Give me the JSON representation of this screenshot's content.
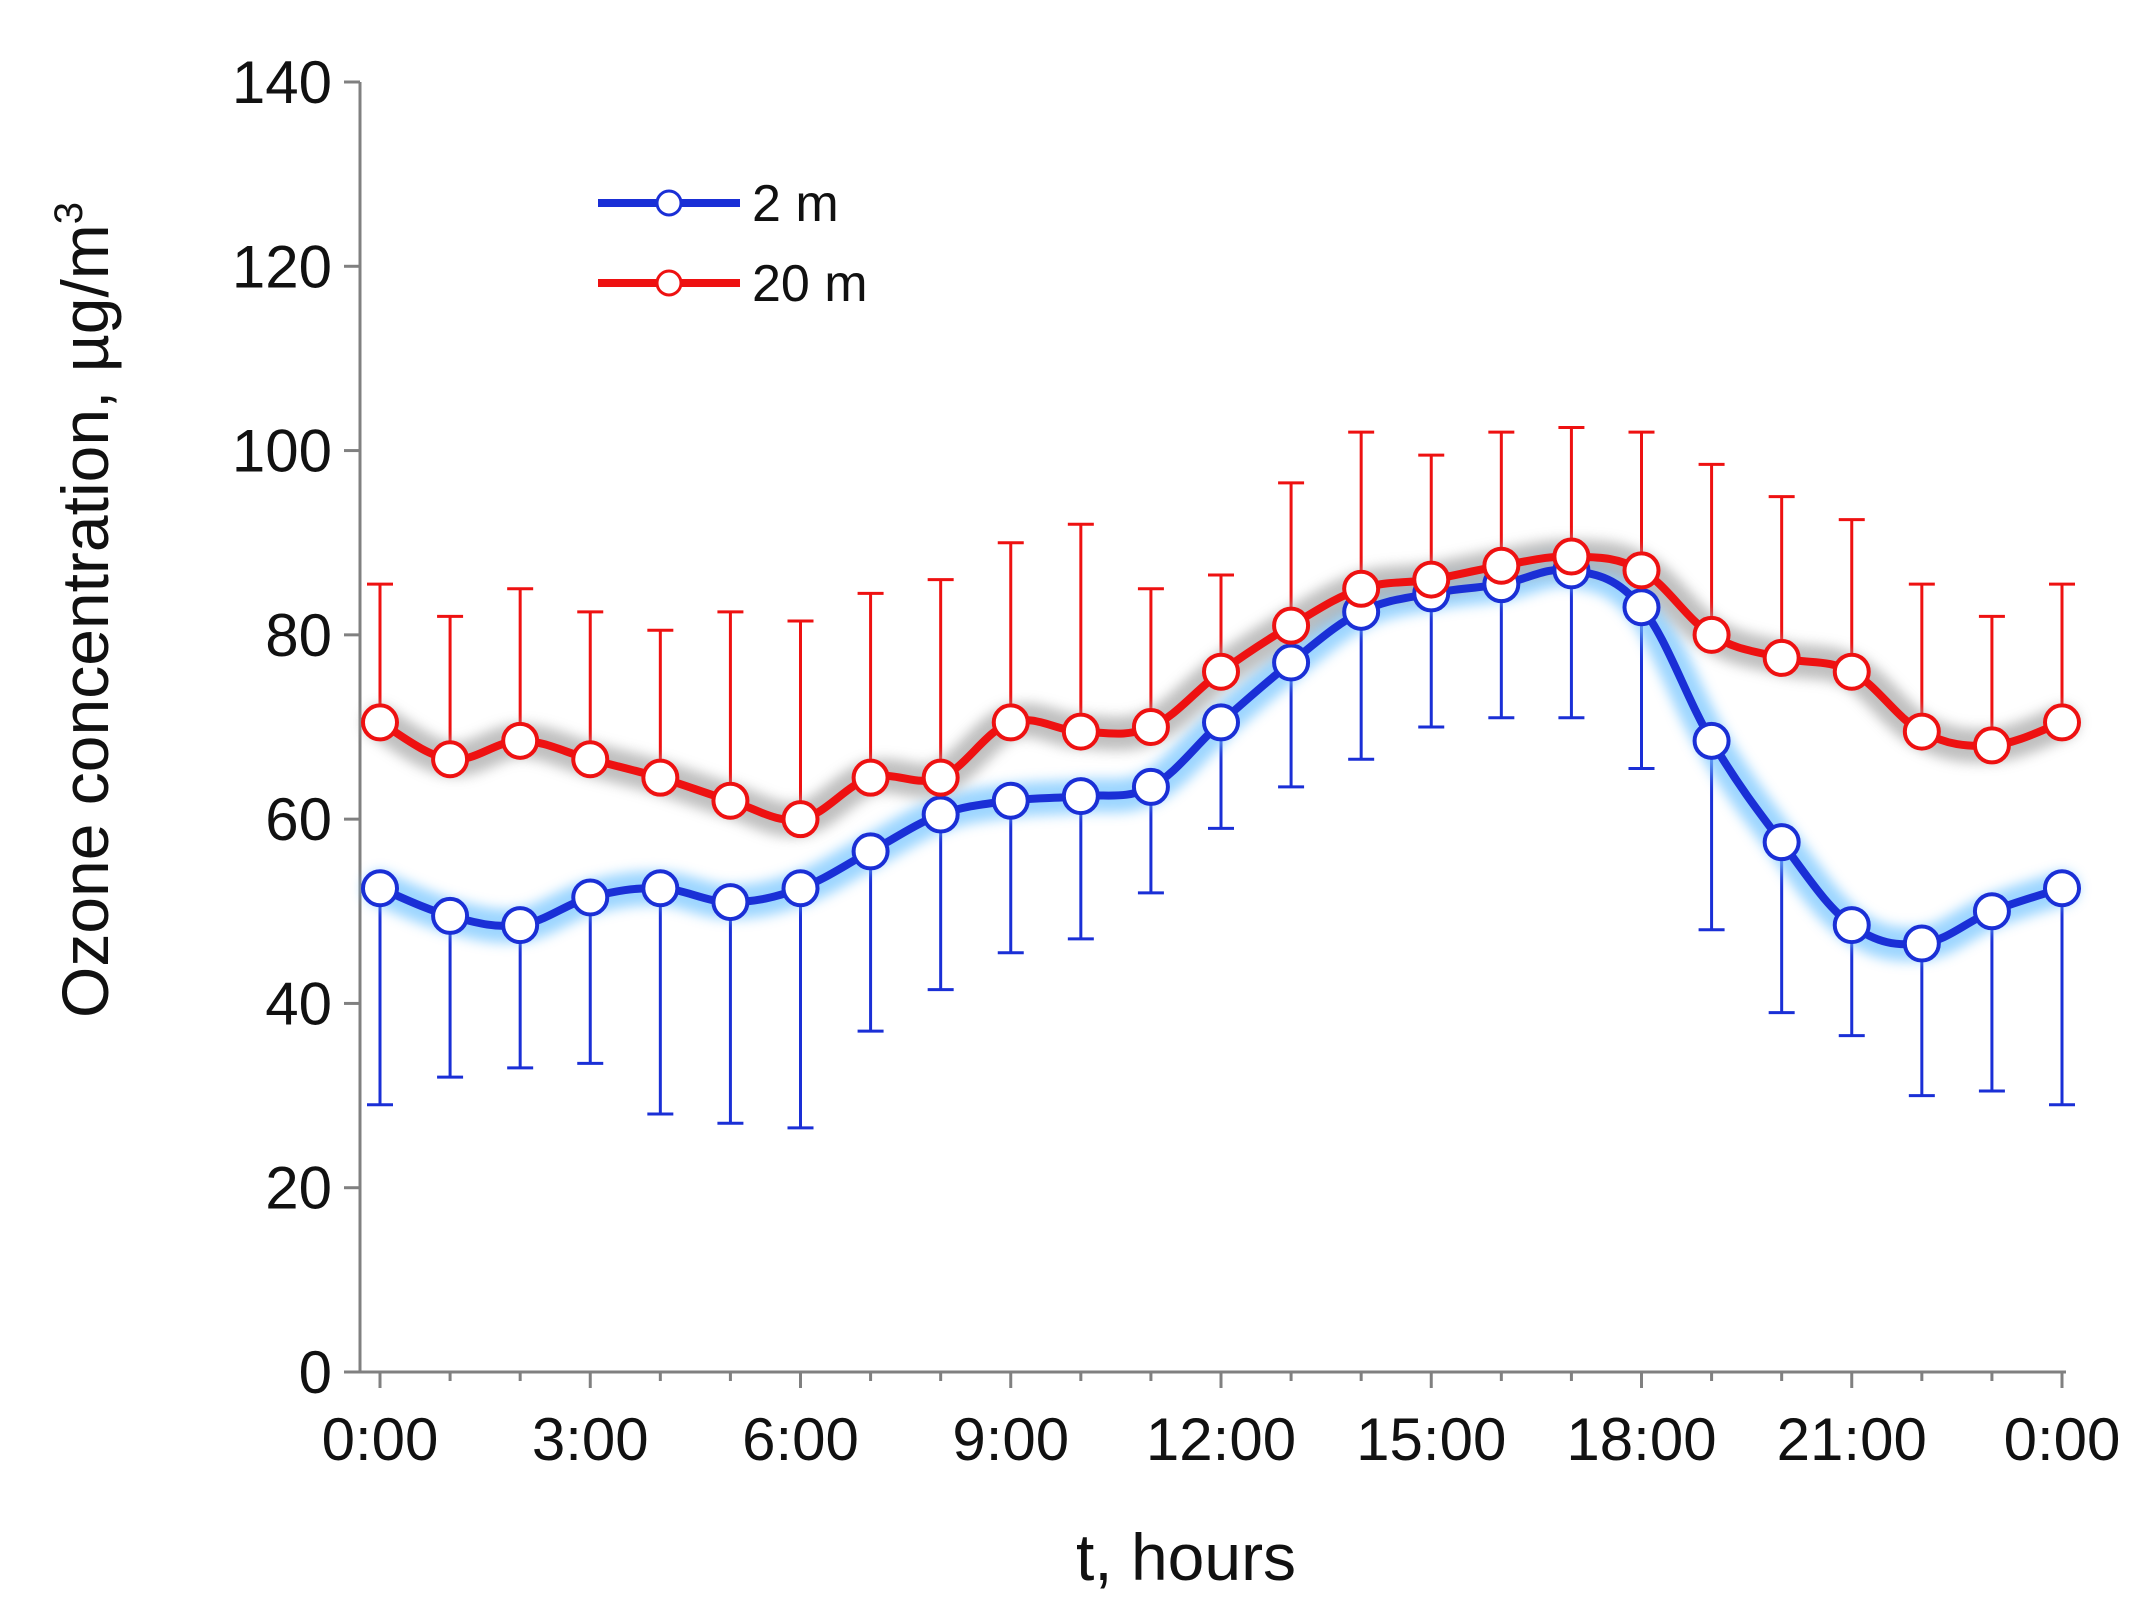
{
  "chart_data": {
    "type": "line",
    "title": "",
    "xlabel": "t, hours",
    "ylabel_main": "Ozone concentration, µg/m",
    "ylabel_sup": "3",
    "ylim": [
      0,
      140
    ],
    "yticks": [
      "0",
      "20",
      "40",
      "60",
      "80",
      "100",
      "120",
      "140"
    ],
    "xlim": [
      0,
      24
    ],
    "xtick_labels": [
      "0:00",
      "3:00",
      "6:00",
      "9:00",
      "12:00",
      "15:00",
      "18:00",
      "21:00",
      "0:00"
    ],
    "legend_position": "top-left",
    "grid": false,
    "x": [
      0,
      1,
      2,
      3,
      4,
      5,
      6,
      7,
      8,
      9,
      10,
      11,
      12,
      13,
      14,
      15,
      16,
      17,
      18,
      19,
      20,
      21,
      22,
      23,
      24
    ],
    "series": [
      {
        "name": "2 m",
        "color": "#1a2fd6",
        "glow": "#7cc8ff",
        "error_direction": "down",
        "values": [
          52.5,
          49.5,
          48.5,
          51.5,
          52.5,
          51,
          52.5,
          56.5,
          60.5,
          62,
          62.5,
          63.5,
          70.5,
          77,
          82.5,
          84.5,
          85.5,
          87,
          83,
          68.5,
          57.5,
          48.5,
          46.5,
          50,
          52.5
        ],
        "errors": [
          23.5,
          17.5,
          15.5,
          18,
          24.5,
          24,
          26,
          19.5,
          19,
          16.5,
          15.5,
          11.5,
          11.5,
          13.5,
          16,
          14.5,
          14.5,
          16,
          17.5,
          20.5,
          18.5,
          12,
          16.5,
          19.5,
          23.5
        ]
      },
      {
        "name": "20 m",
        "color": "#ee1111",
        "glow": "#aaaaaa",
        "error_direction": "up",
        "values": [
          70.5,
          66.5,
          68.5,
          66.5,
          64.5,
          62,
          60,
          64.5,
          64.5,
          70.5,
          69.5,
          70,
          76,
          81,
          85,
          86,
          87.5,
          88.5,
          87,
          80,
          77.5,
          76,
          69.5,
          68,
          70.5
        ],
        "errors": [
          15,
          15.5,
          16.5,
          16,
          16,
          20.5,
          21.5,
          20,
          21.5,
          19.5,
          22.5,
          15,
          10.5,
          15.5,
          17,
          13.5,
          14.5,
          14,
          15,
          18.5,
          17.5,
          16.5,
          16,
          14,
          15
        ]
      }
    ]
  }
}
